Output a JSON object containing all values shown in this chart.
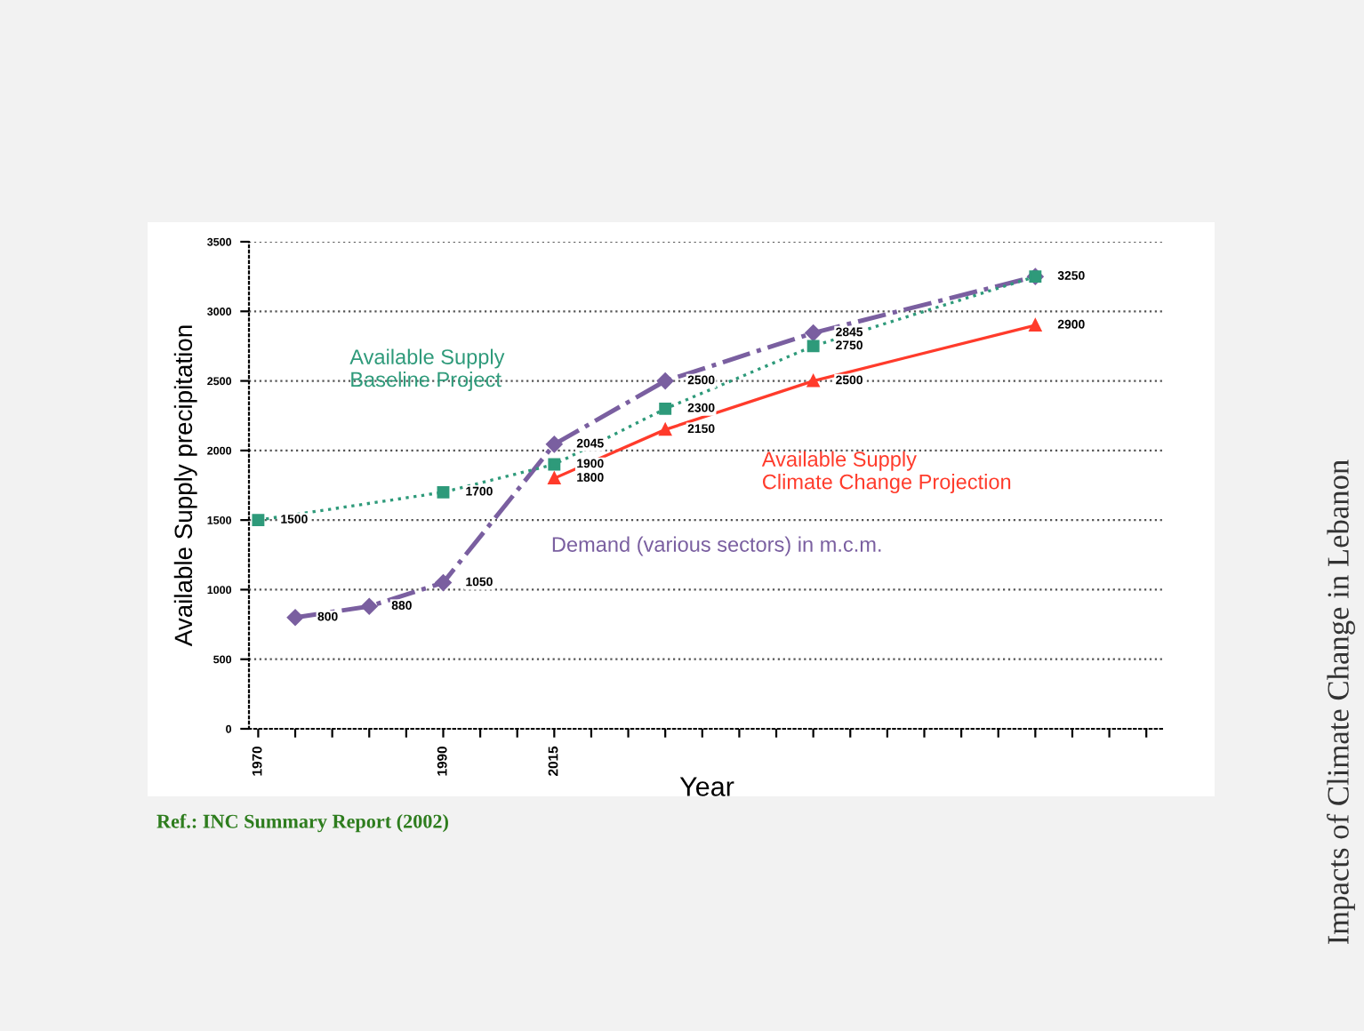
{
  "chart_data": {
    "type": "line",
    "xlabel": "Year",
    "ylabel": "Available Supply precipitation",
    "categories": [
      "1970",
      null,
      null,
      null,
      null,
      "1990",
      null,
      null,
      "2015",
      null,
      null,
      null,
      null,
      null,
      null,
      null,
      null,
      null,
      null,
      null,
      null,
      null,
      null,
      null,
      null
    ],
    "series": [
      {
        "name": "Demand (various sectors) in m.c.m.",
        "color": "#7a5fa0",
        "line_style": "dashdot",
        "marker": "diamond",
        "values": [
          null,
          800,
          null,
          880,
          null,
          1050,
          null,
          null,
          2045,
          null,
          null,
          2500,
          null,
          null,
          null,
          2845,
          null,
          null,
          null,
          null,
          null,
          3250,
          null,
          null,
          null
        ],
        "value_labels": [
          null,
          "800",
          null,
          "880",
          null,
          "1050",
          null,
          null,
          "2045",
          null,
          null,
          "2500",
          null,
          null,
          null,
          "2845",
          null,
          null,
          null,
          null,
          null,
          "3250",
          null,
          null,
          null
        ]
      },
      {
        "name": "Available Supply Baseline Project",
        "color": "#2e9a7a",
        "line_style": "dotted",
        "marker": "square",
        "values": [
          1500,
          null,
          null,
          null,
          null,
          1700,
          null,
          null,
          1900,
          null,
          null,
          2300,
          null,
          null,
          null,
          2750,
          null,
          null,
          null,
          null,
          null,
          3250,
          null,
          null,
          null
        ],
        "value_labels": [
          "1500",
          null,
          null,
          null,
          null,
          "1700",
          null,
          null,
          "1900",
          null,
          null,
          "2300",
          null,
          null,
          null,
          "2750",
          null,
          null,
          null,
          null,
          null,
          null,
          null,
          null,
          null
        ]
      },
      {
        "name": "Available Supply Climate Change Projection",
        "color": "#ff3b2b",
        "line_style": "solid",
        "marker": "triangle",
        "values": [
          null,
          null,
          null,
          null,
          null,
          null,
          null,
          null,
          1800,
          null,
          null,
          2150,
          null,
          null,
          null,
          2500,
          null,
          null,
          null,
          null,
          null,
          2900,
          null,
          null,
          null
        ],
        "value_labels": [
          null,
          null,
          null,
          null,
          null,
          null,
          null,
          null,
          "1800",
          null,
          null,
          "2150",
          null,
          null,
          null,
          "2500",
          null,
          null,
          null,
          null,
          null,
          "2900",
          null,
          null,
          null
        ]
      }
    ],
    "ylim": [
      0,
      3500
    ],
    "yticks": [
      0,
      500,
      1000,
      1500,
      2000,
      2500,
      3000,
      3500
    ],
    "grid": "y",
    "legend": false,
    "annotations": [
      "Ref.: INC Summary Report (2002)",
      "Impacts of Climate Change in Lebanon"
    ]
  }
}
